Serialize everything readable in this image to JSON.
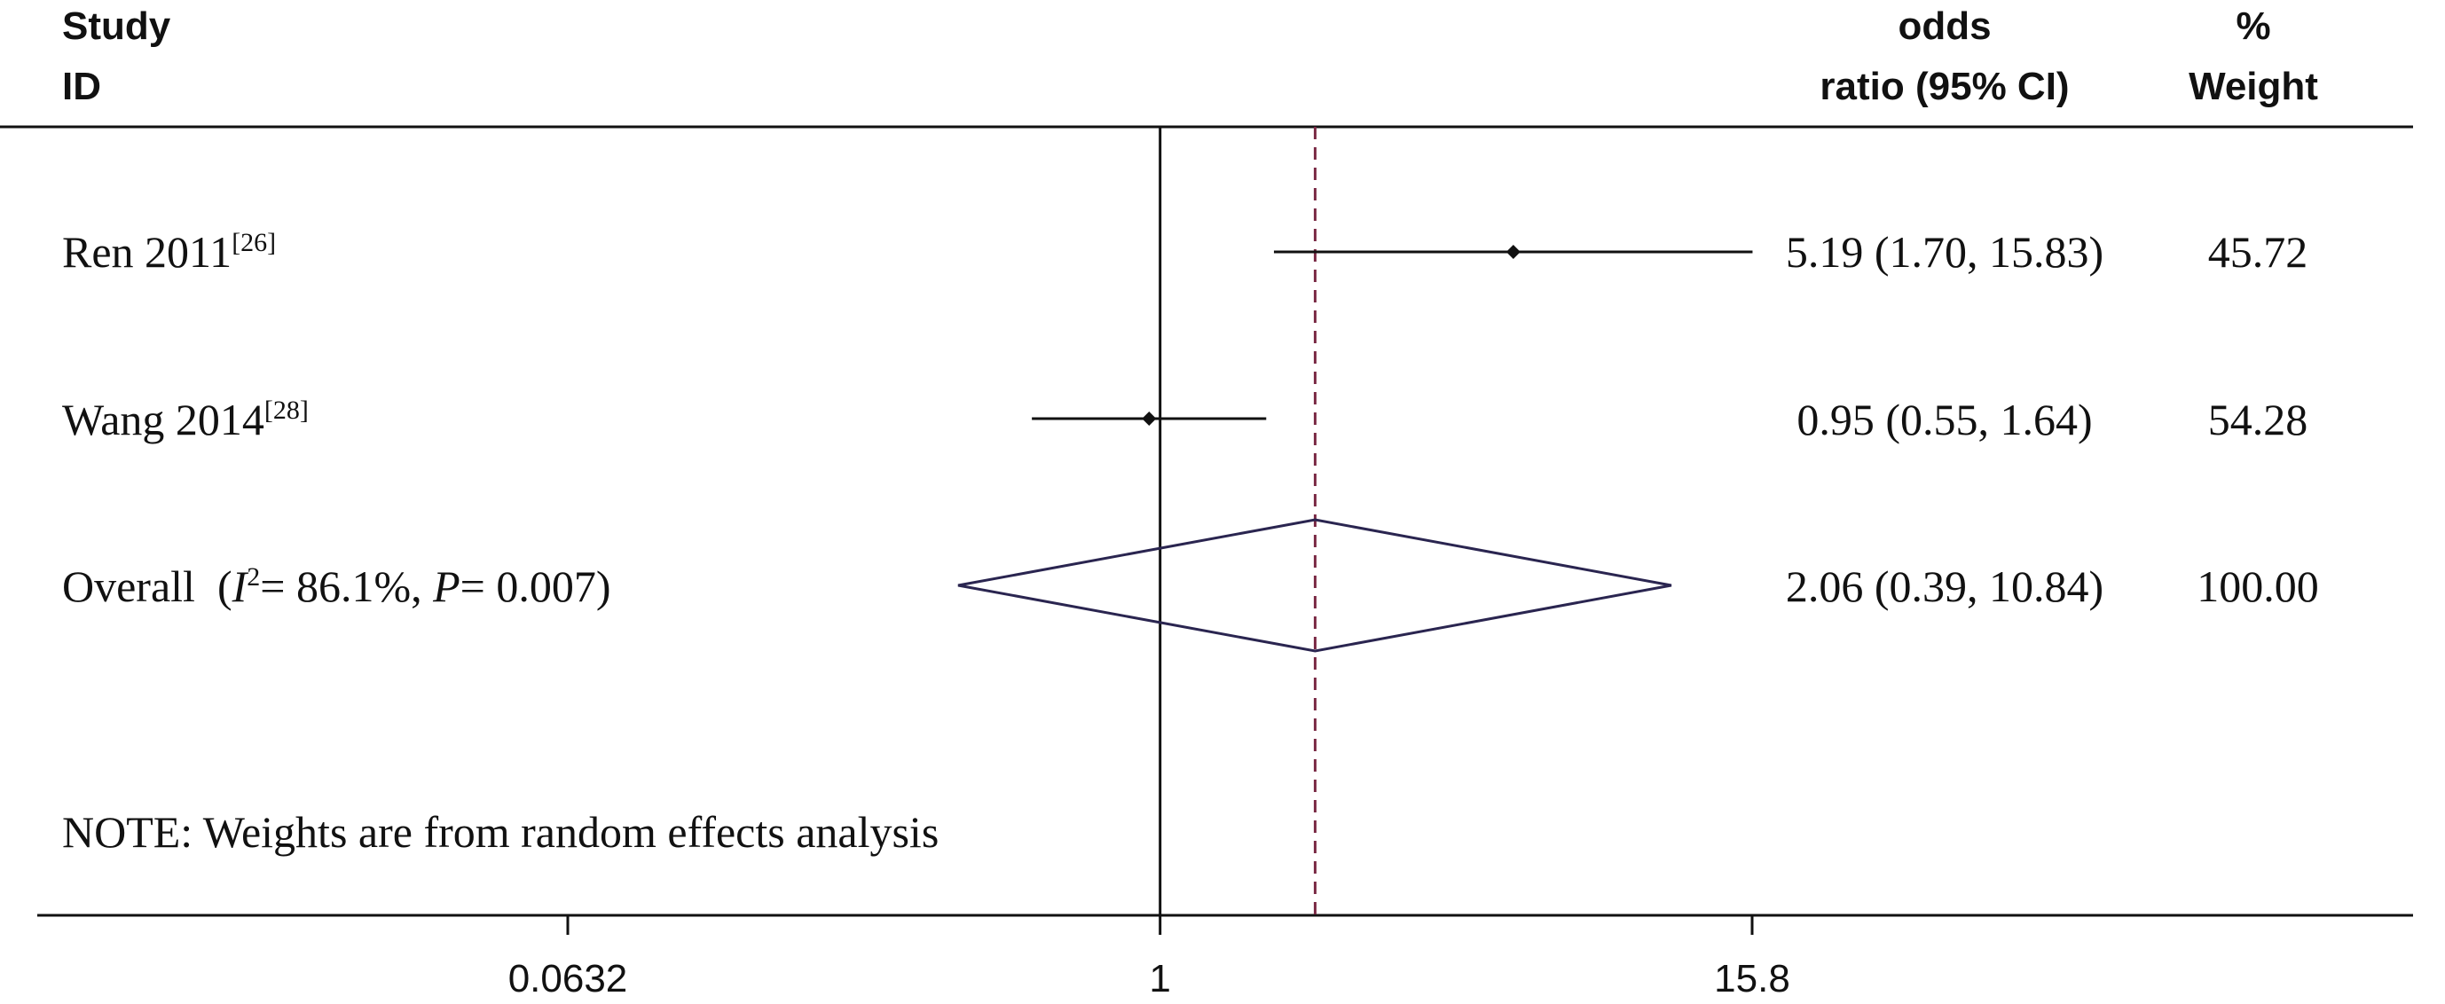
{
  "header": {
    "col1_line1": "Study",
    "col1_line2": "ID",
    "col_or_line1": "odds",
    "col_or_line2": "ratio (95% CI)",
    "col_w_line1": "%",
    "col_w_line2": "Weight"
  },
  "chart_data": {
    "type": "forest",
    "x_scale": "log",
    "x_ticks": [
      0.0632,
      1,
      15.8
    ],
    "x_tick_labels": [
      "0.0632",
      "1",
      "15.8"
    ],
    "null_line": 1,
    "pooled_line": 2.06,
    "studies": [
      {
        "label": "Ren 2011",
        "ref": "[26]",
        "or": 5.19,
        "lo": 1.7,
        "hi": 15.83,
        "ci_text": "5.19 (1.70, 15.83)",
        "weight": 45.72,
        "weight_text": "45.72"
      },
      {
        "label": "Wang 2014",
        "ref": "[28]",
        "or": 0.95,
        "lo": 0.55,
        "hi": 1.64,
        "ci_text": "0.95 (0.55, 1.64)",
        "weight": 54.28,
        "weight_text": "54.28"
      }
    ],
    "overall": {
      "label": "Overall",
      "i2_text": "86.1%",
      "p_text": "0.007",
      "or": 2.06,
      "lo": 0.39,
      "hi": 10.84,
      "ci_text": "2.06 (0.39, 10.84)",
      "weight": 100.0,
      "weight_text": "100.00"
    },
    "note": "NOTE: Weights are from random effects analysis",
    "colors": {
      "ci_line": "#111111",
      "diamond": "#2a2550",
      "pooled_line": "#7a2a45"
    }
  }
}
